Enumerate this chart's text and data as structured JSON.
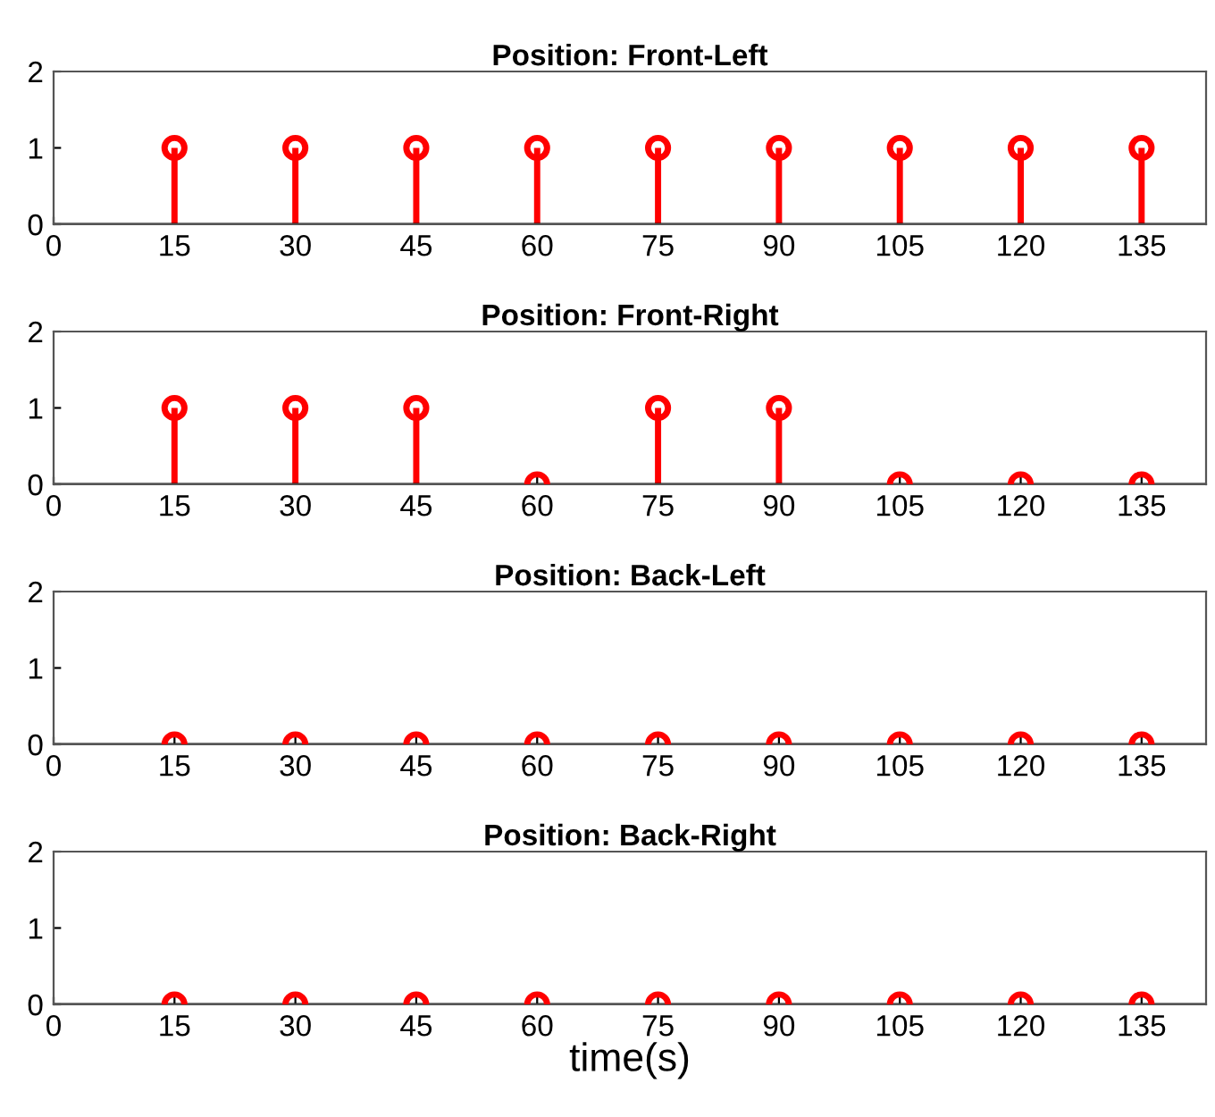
{
  "chart_data": [
    {
      "type": "lollipop",
      "title": "Position: Front-Left",
      "x": [
        15,
        30,
        45,
        60,
        75,
        90,
        105,
        120,
        135
      ],
      "values": [
        1,
        1,
        1,
        1,
        1,
        1,
        1,
        1,
        1
      ],
      "color": "#ff0000",
      "marker": "circle",
      "xlim": [
        0,
        143
      ],
      "xticks": [
        0,
        15,
        30,
        45,
        60,
        75,
        90,
        105,
        120,
        135
      ],
      "ylim": [
        0,
        2
      ],
      "yticks": [
        0,
        1,
        2
      ],
      "grid": false
    },
    {
      "type": "lollipop",
      "title": "Position: Front-Right",
      "x": [
        15,
        30,
        45,
        60,
        75,
        90,
        105,
        120,
        135
      ],
      "values": [
        1,
        1,
        1,
        0,
        1,
        1,
        0,
        0,
        0
      ],
      "color": "#ff0000",
      "marker": "circle",
      "xlim": [
        0,
        143
      ],
      "xticks": [
        0,
        15,
        30,
        45,
        60,
        75,
        90,
        105,
        120,
        135
      ],
      "ylim": [
        0,
        2
      ],
      "yticks": [
        0,
        1,
        2
      ],
      "grid": false
    },
    {
      "type": "lollipop",
      "title": "Position: Back-Left",
      "x": [
        15,
        30,
        45,
        60,
        75,
        90,
        105,
        120,
        135
      ],
      "values": [
        0,
        0,
        0,
        0,
        0,
        0,
        0,
        0,
        0
      ],
      "color": "#ff0000",
      "marker": "circle",
      "xlim": [
        0,
        143
      ],
      "xticks": [
        0,
        15,
        30,
        45,
        60,
        75,
        90,
        105,
        120,
        135
      ],
      "ylim": [
        0,
        2
      ],
      "yticks": [
        0,
        1,
        2
      ],
      "grid": false
    },
    {
      "type": "lollipop",
      "title": "Position: Back-Right",
      "xlabel": "time(s)",
      "x": [
        15,
        30,
        45,
        60,
        75,
        90,
        105,
        120,
        135
      ],
      "values": [
        0,
        0,
        0,
        0,
        0,
        0,
        0,
        0,
        0
      ],
      "color": "#ff0000",
      "marker": "circle",
      "xlim": [
        0,
        143
      ],
      "xticks": [
        0,
        15,
        30,
        45,
        60,
        75,
        90,
        105,
        120,
        135
      ],
      "ylim": [
        0,
        2
      ],
      "yticks": [
        0,
        1,
        2
      ],
      "grid": false
    }
  ]
}
